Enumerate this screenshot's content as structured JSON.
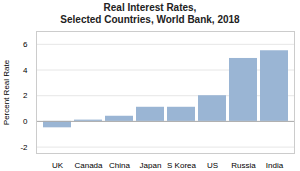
{
  "chart_data": {
    "type": "bar",
    "title": "Real Interest Rates,\nSelected Countries, World Bank, 2018",
    "ylabel": "Percent Real Rate",
    "categories": [
      "UK",
      "Canada",
      "China",
      "Japan",
      "S Korea",
      "US",
      "Russia",
      "India"
    ],
    "values": [
      -0.5,
      0.1,
      0.4,
      1.1,
      1.1,
      2.0,
      4.9,
      5.5
    ],
    "color": "#9ab5d4",
    "ylim": [
      -2.5,
      7
    ],
    "yticks": [
      -2,
      0,
      2,
      4,
      6
    ],
    "grid": true
  }
}
